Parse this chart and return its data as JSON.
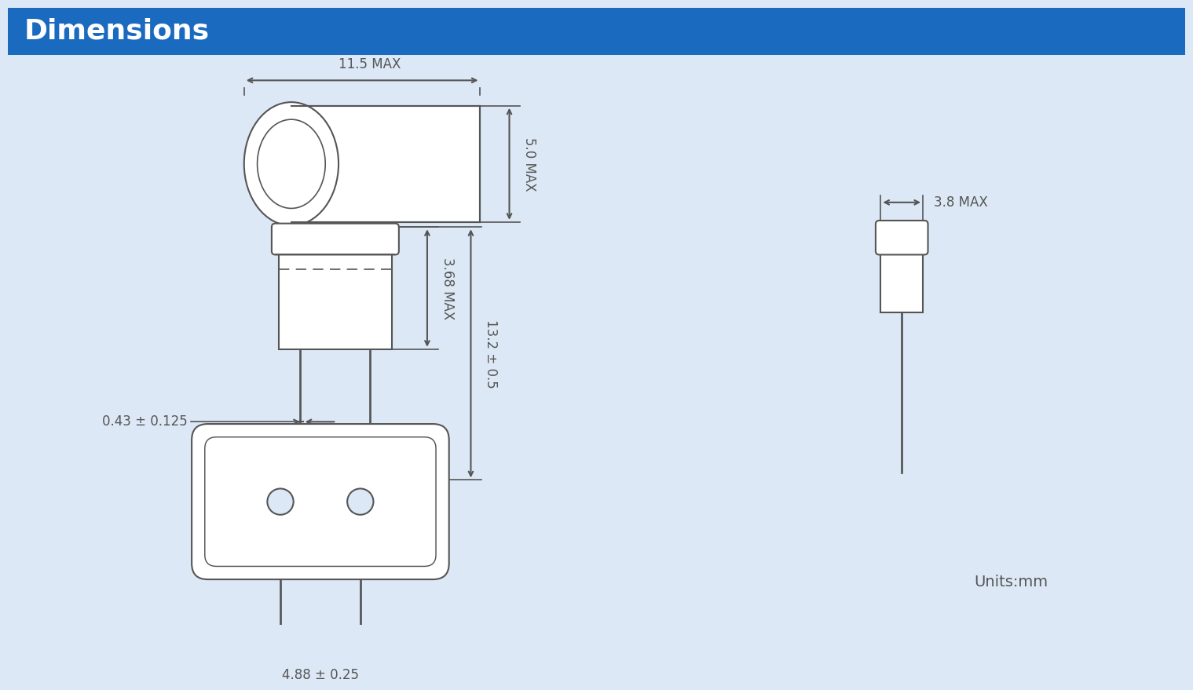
{
  "title": "Dimensions",
  "title_bg_color": "#1a6abf",
  "title_text_color": "#ffffff",
  "bg_color": "#dce8f5",
  "line_color": "#555555",
  "units_text": "Units:mm",
  "dim_11_5": "11.5 MAX",
  "dim_5_0": "5.0 MAX",
  "dim_3_68": "3.68 MAX",
  "dim_13_2": "13.2 ± 0.5",
  "dim_0_43": "0.43 ± 0.125",
  "dim_3_8": "3.8 MAX",
  "dim_4_88": "4.88 ± 0.25"
}
